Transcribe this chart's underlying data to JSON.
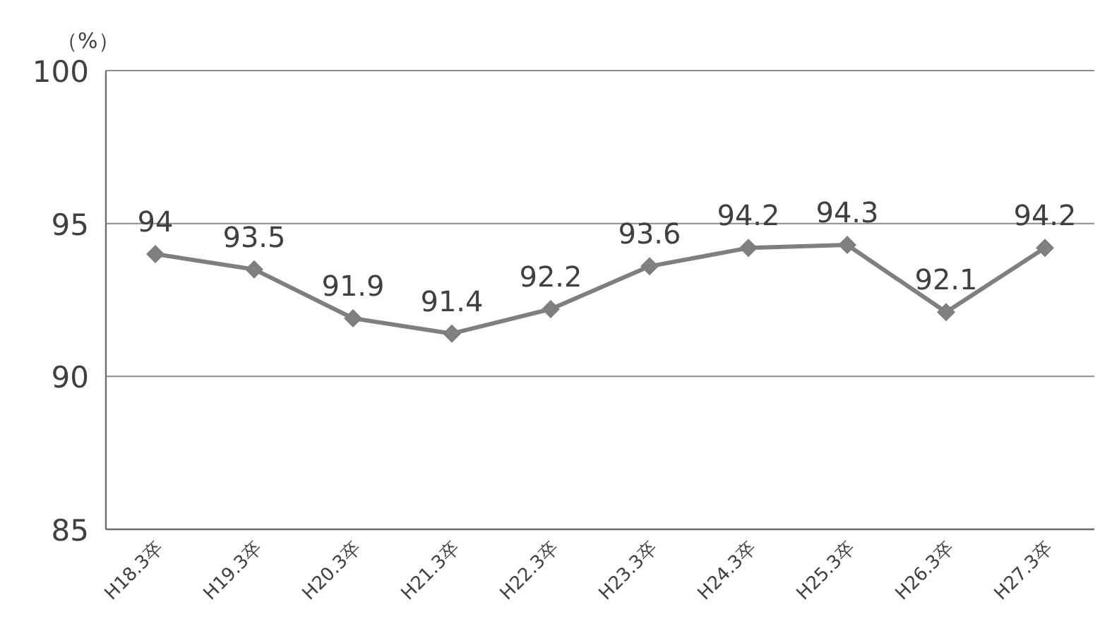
{
  "chart_data": {
    "type": "line",
    "ylabel": "（%）",
    "categories": [
      "H18.3卒",
      "H19.3卒",
      "H20.3卒",
      "H21.3卒",
      "H22.3卒",
      "H23.3卒",
      "H24.3卒",
      "H25.3卒",
      "H26.3卒",
      "H27.3卒"
    ],
    "series": [
      {
        "color": "#7f7f7f",
        "values": [
          94,
          93.5,
          91.9,
          91.4,
          92.2,
          93.6,
          94.2,
          94.3,
          92.1,
          94.2
        ]
      }
    ],
    "ylim": [
      85,
      100
    ],
    "yticks": [
      85,
      90,
      95,
      100
    ],
    "grid": "y",
    "marker": "diamond",
    "line_style": "solid",
    "data_labels": true
  }
}
